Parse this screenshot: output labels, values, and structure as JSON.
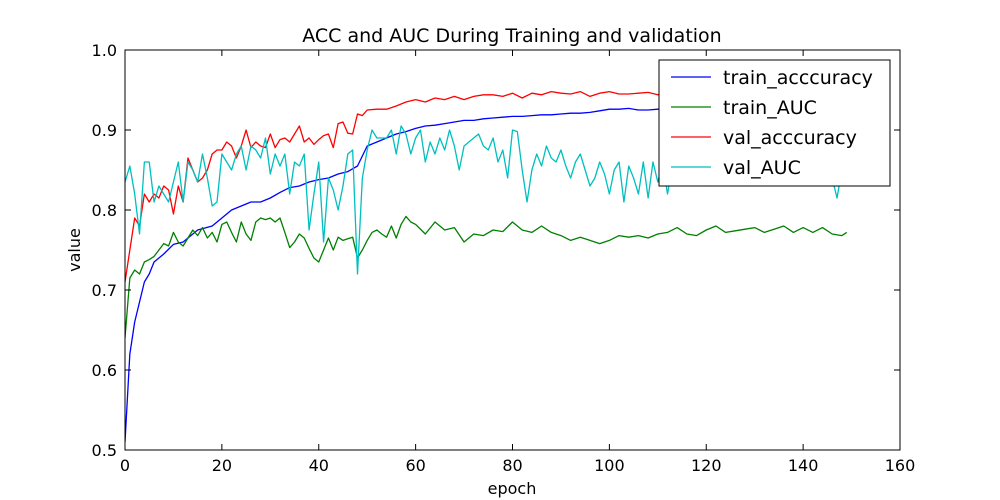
{
  "chart_data": {
    "type": "line",
    "title": "ACC and AUC During Training and validation",
    "xlabel": "epoch",
    "ylabel": "value",
    "xlim": [
      0,
      160
    ],
    "ylim": [
      0.5,
      1.0
    ],
    "xticks": [
      0,
      20,
      40,
      60,
      80,
      100,
      120,
      140,
      160
    ],
    "yticks": [
      0.5,
      0.6,
      0.7,
      0.8,
      0.9,
      1.0
    ],
    "xtick_labels": [
      "0",
      "20",
      "40",
      "60",
      "80",
      "100",
      "120",
      "140",
      "160"
    ],
    "ytick_labels": [
      "0.5",
      "0.6",
      "0.7",
      "0.8",
      "0.9",
      "1.0"
    ],
    "grid": false,
    "legend_position": "top-right",
    "series": [
      {
        "name": "train_acccuracy",
        "color": "#0000ff",
        "x": [
          0,
          1,
          2,
          3,
          4,
          5,
          6,
          8,
          10,
          12,
          15,
          18,
          20,
          22,
          24,
          26,
          28,
          30,
          32,
          34,
          36,
          38,
          40,
          42,
          44,
          46,
          48,
          50,
          52,
          54,
          56,
          58,
          60,
          62,
          64,
          66,
          68,
          70,
          72,
          74,
          76,
          78,
          80,
          82,
          84,
          86,
          88,
          90,
          92,
          94,
          96,
          98,
          100,
          102,
          104,
          106,
          108,
          110,
          112,
          114,
          116,
          118,
          120,
          122,
          124,
          126,
          128,
          130,
          132,
          134,
          136,
          138,
          140,
          142,
          144,
          146,
          148,
          149
        ],
        "y": [
          0.51,
          0.62,
          0.66,
          0.685,
          0.71,
          0.72,
          0.735,
          0.745,
          0.757,
          0.76,
          0.775,
          0.78,
          0.79,
          0.8,
          0.805,
          0.81,
          0.81,
          0.815,
          0.822,
          0.828,
          0.83,
          0.835,
          0.838,
          0.84,
          0.845,
          0.848,
          0.855,
          0.88,
          0.885,
          0.89,
          0.895,
          0.898,
          0.902,
          0.905,
          0.906,
          0.908,
          0.91,
          0.912,
          0.912,
          0.914,
          0.915,
          0.916,
          0.917,
          0.917,
          0.918,
          0.919,
          0.919,
          0.92,
          0.921,
          0.921,
          0.922,
          0.924,
          0.926,
          0.926,
          0.927,
          0.925,
          0.925,
          0.926,
          0.927,
          0.928,
          0.927,
          0.928,
          0.928,
          0.928,
          0.929,
          0.929,
          0.929,
          0.93,
          0.93,
          0.93,
          0.931,
          0.931,
          0.931,
          0.93,
          0.931,
          0.931,
          0.932,
          0.931
        ]
      },
      {
        "name": "train_AUC",
        "color": "#008000",
        "x": [
          0,
          1,
          2,
          3,
          4,
          5,
          6,
          7,
          8,
          9,
          10,
          11,
          12,
          13,
          14,
          15,
          16,
          17,
          18,
          19,
          20,
          21,
          22,
          23,
          24,
          25,
          26,
          27,
          28,
          29,
          30,
          31,
          32,
          33,
          34,
          35,
          36,
          37,
          38,
          39,
          40,
          41,
          42,
          43,
          44,
          45,
          46,
          47,
          48,
          49,
          50,
          51,
          52,
          53,
          54,
          55,
          56,
          57,
          58,
          59,
          60,
          62,
          64,
          66,
          68,
          70,
          72,
          74,
          76,
          78,
          80,
          82,
          84,
          86,
          88,
          90,
          92,
          94,
          96,
          98,
          100,
          102,
          104,
          106,
          108,
          110,
          112,
          114,
          116,
          118,
          120,
          122,
          124,
          126,
          128,
          130,
          132,
          134,
          136,
          138,
          140,
          142,
          144,
          146,
          148,
          149
        ],
        "y": [
          0.64,
          0.715,
          0.725,
          0.72,
          0.735,
          0.738,
          0.742,
          0.75,
          0.758,
          0.755,
          0.772,
          0.76,
          0.755,
          0.765,
          0.775,
          0.768,
          0.778,
          0.765,
          0.772,
          0.76,
          0.782,
          0.785,
          0.772,
          0.76,
          0.785,
          0.77,
          0.762,
          0.785,
          0.79,
          0.788,
          0.79,
          0.785,
          0.79,
          0.772,
          0.753,
          0.76,
          0.77,
          0.765,
          0.752,
          0.74,
          0.735,
          0.75,
          0.765,
          0.75,
          0.766,
          0.762,
          0.764,
          0.766,
          0.74,
          0.75,
          0.762,
          0.772,
          0.775,
          0.77,
          0.766,
          0.78,
          0.765,
          0.782,
          0.792,
          0.785,
          0.782,
          0.77,
          0.785,
          0.775,
          0.778,
          0.76,
          0.77,
          0.768,
          0.775,
          0.773,
          0.785,
          0.775,
          0.772,
          0.78,
          0.772,
          0.768,
          0.762,
          0.766,
          0.762,
          0.758,
          0.762,
          0.768,
          0.766,
          0.768,
          0.765,
          0.77,
          0.772,
          0.778,
          0.77,
          0.768,
          0.775,
          0.78,
          0.772,
          0.774,
          0.776,
          0.778,
          0.772,
          0.776,
          0.78,
          0.772,
          0.778,
          0.772,
          0.778,
          0.77,
          0.768,
          0.772
        ]
      },
      {
        "name": "val_acccuracy",
        "color": "#ff0000",
        "x": [
          0,
          1,
          2,
          3,
          4,
          5,
          6,
          7,
          8,
          9,
          10,
          11,
          12,
          13,
          14,
          15,
          16,
          17,
          18,
          19,
          20,
          21,
          22,
          23,
          24,
          25,
          26,
          27,
          28,
          29,
          30,
          31,
          32,
          33,
          34,
          35,
          36,
          37,
          38,
          39,
          40,
          41,
          42,
          43,
          44,
          45,
          46,
          47,
          48,
          49,
          50,
          52,
          54,
          56,
          58,
          60,
          62,
          64,
          66,
          68,
          70,
          72,
          74,
          76,
          78,
          80,
          82,
          84,
          86,
          88,
          90,
          92,
          94,
          96,
          98,
          100,
          102,
          104,
          106,
          108,
          110,
          112,
          114
        ],
        "y": [
          0.71,
          0.75,
          0.79,
          0.78,
          0.82,
          0.81,
          0.82,
          0.815,
          0.83,
          0.825,
          0.795,
          0.83,
          0.81,
          0.865,
          0.85,
          0.835,
          0.84,
          0.85,
          0.87,
          0.875,
          0.875,
          0.885,
          0.88,
          0.865,
          0.88,
          0.9,
          0.878,
          0.885,
          0.88,
          0.878,
          0.895,
          0.878,
          0.888,
          0.89,
          0.885,
          0.895,
          0.905,
          0.885,
          0.89,
          0.882,
          0.888,
          0.893,
          0.895,
          0.878,
          0.908,
          0.91,
          0.896,
          0.895,
          0.92,
          0.918,
          0.925,
          0.926,
          0.926,
          0.93,
          0.935,
          0.938,
          0.935,
          0.94,
          0.938,
          0.942,
          0.938,
          0.942,
          0.944,
          0.944,
          0.942,
          0.946,
          0.94,
          0.946,
          0.944,
          0.948,
          0.946,
          0.945,
          0.948,
          0.942,
          0.946,
          0.948,
          0.945,
          0.945,
          0.946,
          0.947,
          0.944,
          0.948,
          0.955
        ]
      },
      {
        "name": "val_AUC",
        "color": "#00bfbf",
        "x": [
          0,
          1,
          2,
          3,
          4,
          5,
          6,
          7,
          8,
          9,
          10,
          11,
          12,
          13,
          14,
          15,
          16,
          17,
          18,
          19,
          20,
          21,
          22,
          23,
          24,
          25,
          26,
          27,
          28,
          29,
          30,
          31,
          32,
          33,
          34,
          35,
          36,
          37,
          38,
          39,
          40,
          41,
          42,
          43,
          44,
          45,
          46,
          47,
          48,
          49,
          50,
          51,
          52,
          53,
          54,
          55,
          56,
          57,
          58,
          59,
          60,
          61,
          62,
          63,
          64,
          65,
          66,
          67,
          68,
          69,
          70,
          71,
          72,
          73,
          74,
          75,
          76,
          77,
          78,
          79,
          80,
          81,
          82,
          83,
          84,
          85,
          86,
          87,
          88,
          89,
          90,
          91,
          92,
          93,
          94,
          95,
          96,
          97,
          98,
          99,
          100,
          101,
          102,
          103,
          104,
          105,
          106,
          107,
          108,
          109,
          110,
          111,
          112,
          113,
          114,
          115,
          116,
          117,
          118,
          119,
          120,
          121,
          122,
          123,
          124,
          125,
          126,
          127,
          128,
          129,
          130,
          131,
          132,
          133,
          134,
          135,
          136,
          137,
          138,
          139,
          140,
          141,
          142,
          143,
          144,
          145,
          146,
          147,
          148,
          149
        ],
        "y": [
          0.835,
          0.855,
          0.82,
          0.77,
          0.86,
          0.86,
          0.81,
          0.83,
          0.82,
          0.81,
          0.835,
          0.86,
          0.81,
          0.86,
          0.85,
          0.835,
          0.87,
          0.84,
          0.805,
          0.81,
          0.87,
          0.86,
          0.85,
          0.87,
          0.88,
          0.85,
          0.88,
          0.875,
          0.865,
          0.89,
          0.845,
          0.87,
          0.855,
          0.87,
          0.82,
          0.86,
          0.855,
          0.87,
          0.775,
          0.82,
          0.86,
          0.76,
          0.84,
          0.825,
          0.8,
          0.83,
          0.87,
          0.875,
          0.72,
          0.84,
          0.875,
          0.9,
          0.89,
          0.89,
          0.89,
          0.9,
          0.87,
          0.905,
          0.895,
          0.87,
          0.89,
          0.9,
          0.86,
          0.885,
          0.87,
          0.89,
          0.875,
          0.9,
          0.88,
          0.85,
          0.88,
          0.885,
          0.89,
          0.895,
          0.88,
          0.875,
          0.89,
          0.86,
          0.875,
          0.84,
          0.9,
          0.898,
          0.85,
          0.81,
          0.85,
          0.87,
          0.855,
          0.88,
          0.865,
          0.86,
          0.875,
          0.855,
          0.84,
          0.86,
          0.87,
          0.85,
          0.83,
          0.84,
          0.86,
          0.845,
          0.82,
          0.85,
          0.86,
          0.81,
          0.855,
          0.84,
          0.82,
          0.86,
          0.815,
          0.86,
          0.835,
          0.86,
          0.82,
          0.855,
          0.84,
          0.86,
          0.865,
          0.835,
          0.86,
          0.85,
          0.865,
          0.83,
          0.855,
          0.845,
          0.86,
          0.84,
          0.86,
          0.85,
          0.865,
          0.84,
          0.85,
          0.86,
          0.845,
          0.855,
          0.84,
          0.86,
          0.85,
          0.865,
          0.84,
          0.855,
          0.845,
          0.86,
          0.84,
          0.855,
          0.85,
          0.86,
          0.84,
          0.815,
          0.85,
          0.86
        ]
      }
    ]
  }
}
